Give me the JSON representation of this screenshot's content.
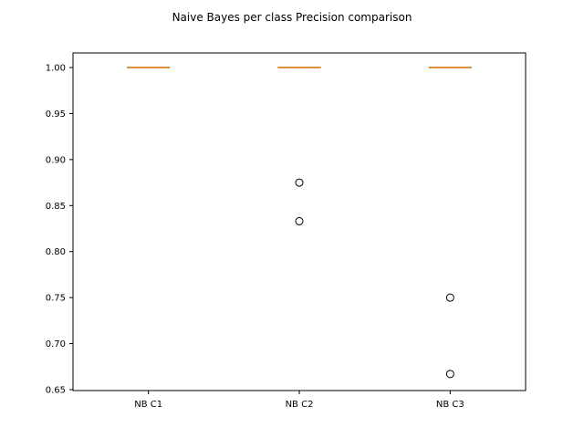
{
  "chart_data": {
    "type": "boxplot",
    "title": "Naive Bayes per class Precision comparison",
    "xlabel": "",
    "ylabel": "",
    "categories": [
      "NB C1",
      "NB C2",
      "NB C3"
    ],
    "ylim": [
      0.65,
      1.0
    ],
    "yticks": [
      0.65,
      0.7,
      0.75,
      0.8,
      0.85,
      0.9,
      0.95,
      1.0
    ],
    "ytick_labels": [
      "0.65",
      "0.70",
      "0.75",
      "0.80",
      "0.85",
      "0.90",
      "0.95",
      "1.00"
    ],
    "boxes": [
      {
        "category": "NB C1",
        "whisker_low": 1.0,
        "q1": 1.0,
        "median": 1.0,
        "q3": 1.0,
        "whisker_high": 1.0,
        "outliers": []
      },
      {
        "category": "NB C2",
        "whisker_low": 1.0,
        "q1": 1.0,
        "median": 1.0,
        "q3": 1.0,
        "whisker_high": 1.0,
        "outliers": [
          0.875,
          0.833
        ]
      },
      {
        "category": "NB C3",
        "whisker_low": 1.0,
        "q1": 1.0,
        "median": 1.0,
        "q3": 1.0,
        "whisker_high": 1.0,
        "outliers": [
          0.75,
          0.667
        ]
      }
    ],
    "grid": false,
    "colors": {
      "median": "#e08e3c",
      "box": "#000000",
      "outlier": "#000000"
    }
  }
}
